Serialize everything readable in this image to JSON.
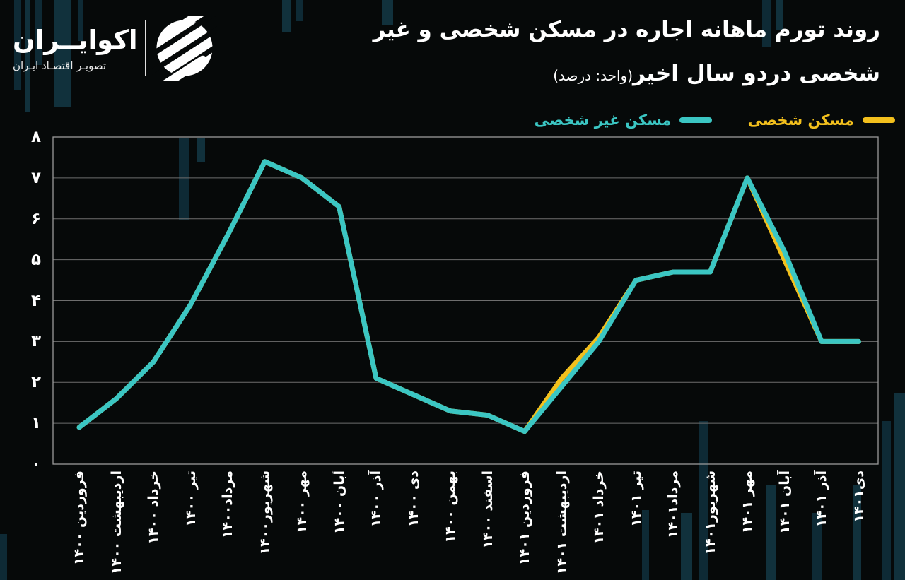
{
  "brand": {
    "name": "اکوایــران",
    "tagline": "تصویـر اقتصـاد ایـران"
  },
  "title": {
    "line1": "روند تورم ماهانه اجاره در مسکن شخصی و غیر",
    "line2": "شخصی دردو سال اخیر",
    "unit_note": "(واحد: درصد)"
  },
  "legend": [
    {
      "label": "مسکن شخصی",
      "color": "#F3C01D"
    },
    {
      "label": "مسکن غیر شخصی",
      "color": "#3BC6C3"
    }
  ],
  "chart_data": {
    "type": "line",
    "title": "روند تورم ماهانه اجاره در مسکن شخصی و غیر شخصی دردو سال اخیر",
    "unit": "درصد",
    "xlabel": "",
    "ylabel": "",
    "ylim": [
      0,
      8
    ],
    "grid": true,
    "legend_position": "top-right",
    "y_tick_labels": [
      "۰",
      "۱",
      "۲",
      "۳",
      "۴",
      "۵",
      "۶",
      "۷",
      "۸"
    ],
    "categories": [
      "فروردین ۱۴۰۰",
      "اردیبهشت ۱۴۰۰",
      "خرداد ۱۴۰۰",
      "تیر ۱۴۰۰",
      "مرداد۱۴۰۰",
      "شهریور۱۴۰۰",
      "مهر ۱۴۰۰",
      "آبان ۱۴۰۰",
      "آذر ۱۴۰۰",
      "دی ۱۴۰۰",
      "بهمن ۱۴۰۰",
      "اسفند ۱۴۰۰",
      "فروردین ۱۴۰۱",
      "اردیبهشت ۱۴۰۱",
      "خرداد ۱۴۰۱",
      "تیر ۱۴۰۱",
      "مرداد۱۴۰۱",
      "شهریور۱۴۰۱",
      "مهر ۱۴۰۱",
      "آبان ۱۴۰۱",
      "آذر ۱۴۰۱",
      "دی۱۴۰۱"
    ],
    "series": [
      {
        "name": "مسکن شخصی",
        "color": "#F3C01D",
        "values": [
          0.9,
          1.6,
          2.5,
          3.9,
          5.6,
          7.4,
          7.0,
          6.3,
          2.1,
          1.7,
          1.3,
          1.2,
          0.8,
          2.1,
          3.1,
          4.5,
          4.7,
          4.7,
          7.0,
          5.0,
          3.0,
          3.0
        ]
      },
      {
        "name": "مسکن غیر شخصی",
        "color": "#3BC6C3",
        "values": [
          0.9,
          1.6,
          2.5,
          3.9,
          5.6,
          7.4,
          7.0,
          6.3,
          2.1,
          1.7,
          1.3,
          1.2,
          0.8,
          1.9,
          3.0,
          4.5,
          4.7,
          4.7,
          7.0,
          5.2,
          3.0,
          3.0
        ]
      }
    ]
  }
}
